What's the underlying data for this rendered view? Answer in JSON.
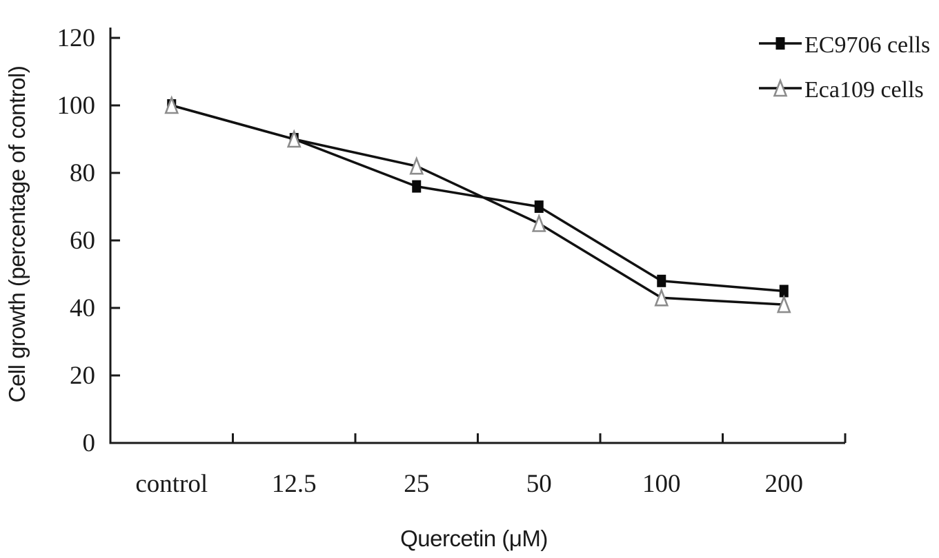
{
  "figure": {
    "background_color": "#ffffff",
    "axis_color": "#1a1a1a",
    "line_color": "#111111"
  },
  "chart_data": {
    "type": "line",
    "title": "",
    "xlabel": "Quercetin (μM)",
    "ylabel": "Cell growth (percentage of control)",
    "categories": [
      "control",
      "12.5",
      "25",
      "50",
      "100",
      "200"
    ],
    "y_ticks": [
      0,
      20,
      40,
      60,
      80,
      100,
      120
    ],
    "ylim": [
      0,
      120
    ],
    "grid": false,
    "legend_position": "top-right",
    "series": [
      {
        "name": "EC9706 cells",
        "marker": "filled-square",
        "marker_fill": "#0a0a0a",
        "line_color": "#111111",
        "values": [
          100,
          90,
          76,
          70,
          48,
          45
        ]
      },
      {
        "name": "Eca109 cells",
        "marker": "open-triangle",
        "marker_fill": "#ffffff",
        "marker_stroke": "#8c8c8c",
        "line_color": "#111111",
        "values": [
          100,
          90,
          82,
          65,
          43,
          41
        ]
      }
    ]
  }
}
